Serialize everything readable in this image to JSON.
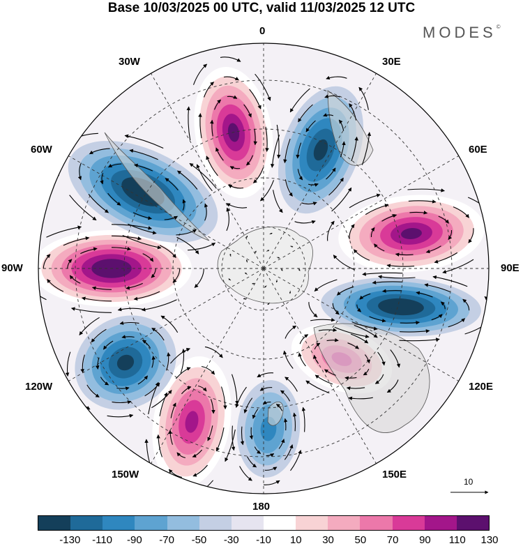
{
  "title": "Base 10/03/2025 00 UTC, valid 11/03/2025 12 UTC",
  "brand": "MODES",
  "brand_mark": "©",
  "longitude_labels": {
    "top": "0",
    "e30": "30E",
    "e60": "60E",
    "e90": "90E",
    "e120": "120E",
    "e150": "150E",
    "bottom": "180",
    "w150": "150W",
    "w120": "120W",
    "w90": "90W",
    "w60": "60W",
    "w30": "30W"
  },
  "reference_vector": "10",
  "colorbar": {
    "ticks": [
      "-130",
      "-110",
      "-90",
      "-70",
      "-50",
      "-30",
      "-10",
      "10",
      "30",
      "50",
      "70",
      "90",
      "110",
      "130"
    ],
    "colors": [
      "#143f5a",
      "#1f6a99",
      "#2f87bf",
      "#5ea3d1",
      "#93bddf",
      "#c4cfe4",
      "#e6e4f0",
      "#ffffff",
      "#f8d3d5",
      "#f4abbf",
      "#ec78aa",
      "#d93a98",
      "#a3168a",
      "#5c106e"
    ]
  },
  "map": {
    "projection": "south polar stereographic",
    "graticule": "dashed",
    "centers": [
      {
        "sign": "positive",
        "level": 110
      },
      {
        "sign": "negative",
        "level": -90
      },
      {
        "sign": "positive",
        "level": 110
      },
      {
        "sign": "negative",
        "level": -110
      },
      {
        "sign": "positive",
        "level": 70
      },
      {
        "sign": "negative",
        "level": -50
      },
      {
        "sign": "positive",
        "level": 90
      },
      {
        "sign": "negative",
        "level": -90
      },
      {
        "sign": "positive",
        "level": 130
      },
      {
        "sign": "negative",
        "level": -110
      }
    ]
  }
}
